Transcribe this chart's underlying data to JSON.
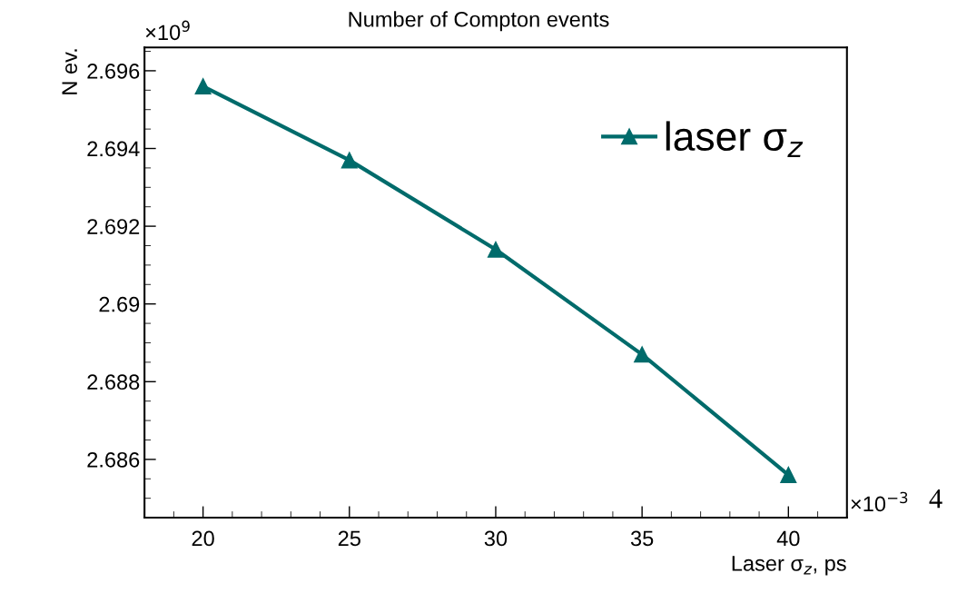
{
  "chart_data": {
    "type": "line",
    "title": "Number of Compton events",
    "xlabel": "Laser σ$_{z}$, ps",
    "ylabel": "N ev.",
    "x": [
      20,
      25,
      30,
      35,
      40
    ],
    "series": [
      {
        "name": "laser σ$_{z}$",
        "color": "#006b6b",
        "values": [
          2.6956,
          2.6937,
          2.6914,
          2.6887,
          2.6856
        ]
      }
    ],
    "xlim": [
      18,
      42
    ],
    "xticks": [
      20,
      25,
      30,
      35,
      40
    ],
    "ylim": [
      2.6845,
      2.6966
    ],
    "yticks": [
      {
        "value": 2.686,
        "label": "2.686"
      },
      {
        "value": 2.688,
        "label": "2.688"
      },
      {
        "value": 2.69,
        "label": "2.69"
      },
      {
        "value": 2.692,
        "label": "2.692"
      },
      {
        "value": 2.694,
        "label": "2.694"
      },
      {
        "value": 2.696,
        "label": "2.696"
      }
    ],
    "marker": "triangle",
    "line_style": "solid",
    "legend": "top right",
    "grid": false,
    "annotations": [
      "×10$^{9}$",
      "×10$^{−3}$",
      "4"
    ]
  }
}
